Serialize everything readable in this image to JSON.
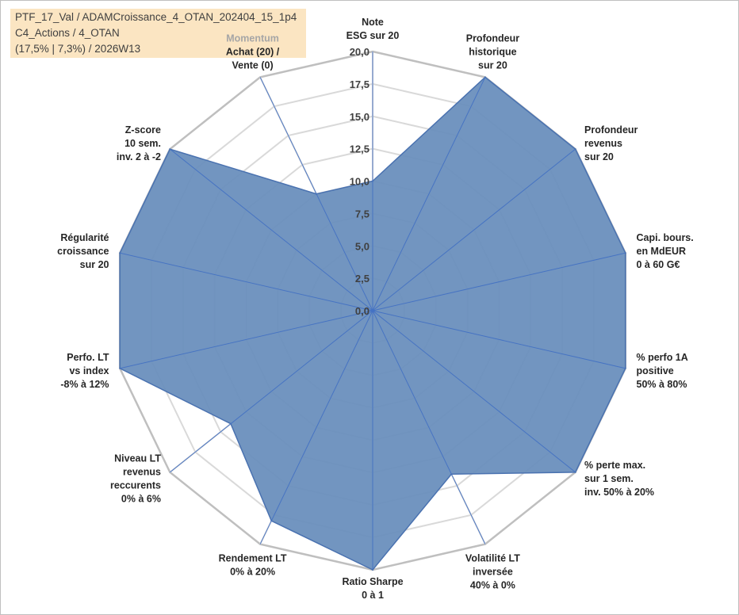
{
  "header": {
    "line1": "PTF_17_Val / ADAMCroissance_4_OTAN_202404_15_1p4",
    "line2": "C4_Actions / 4_OTAN",
    "line3": "(17,5% | 7,3%) / 2026W13"
  },
  "colors": {
    "header_bg": "#fbe5c2",
    "area_fill": "#6a8fbd",
    "area_stroke": "#4a72b0",
    "spoke": "#4472c4",
    "grid_inner": "#d9d9d9",
    "grid_outer": "#bfbfbf"
  },
  "chart_data": {
    "type": "radar",
    "rmin": 0,
    "rmax": 20,
    "ticks": [
      "0,0",
      "2,5",
      "5,0",
      "7,5",
      "10,0",
      "12,5",
      "15,0",
      "17,5",
      "20,0"
    ],
    "tick_values": [
      0,
      2.5,
      5,
      7.5,
      10,
      12.5,
      15,
      17.5,
      20
    ],
    "axes": [
      {
        "label": [
          "Note",
          "ESG sur 20"
        ],
        "value": 10
      },
      {
        "label": [
          "Profondeur",
          "historique",
          "sur 20"
        ],
        "value": 20
      },
      {
        "label": [
          "Profondeur",
          "revenus",
          "sur 20"
        ],
        "value": 20
      },
      {
        "label": [
          "Capi. bours.",
          "en MdEUR",
          "0 à 60 G€"
        ],
        "value": 20
      },
      {
        "label": [
          "% perfo 1A",
          "positive",
          "50% à 80%"
        ],
        "value": 20
      },
      {
        "label": [
          "% perte max.",
          "sur 1 sem.",
          "inv. 50% à 20%"
        ],
        "value": 20
      },
      {
        "label": [
          "Volatilité LT",
          "inversée",
          "40% à 0%"
        ],
        "value": 14
      },
      {
        "label": [
          "Ratio Sharpe",
          "0 à 1"
        ],
        "value": 20
      },
      {
        "label": [
          "Rendement LT",
          "0% à 20%"
        ],
        "value": 18
      },
      {
        "label": [
          "Niveau LT",
          "revenus",
          "reccurents",
          "0% à 6%"
        ],
        "value": 14
      },
      {
        "label": [
          "Perfo. LT",
          "vs index",
          "-8% à 12%"
        ],
        "value": 20
      },
      {
        "label": [
          "Régularité",
          "croissance",
          "sur 20"
        ],
        "value": 20
      },
      {
        "label": [
          "Z-score",
          "10 sem.",
          "inv. 2 à -2"
        ],
        "value": 20
      },
      {
        "label": [
          "Momentum",
          "Achat (20) /",
          "Vente (0)"
        ],
        "value": 10
      }
    ]
  }
}
